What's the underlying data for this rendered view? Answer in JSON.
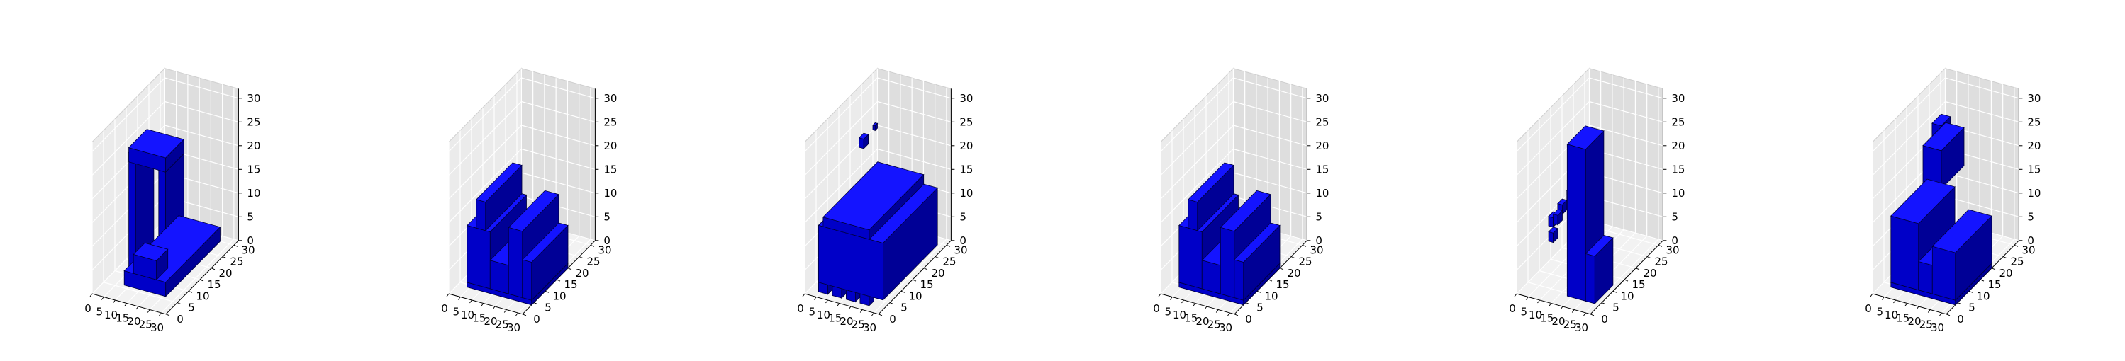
{
  "chart_data": [
    {
      "type": "voxel",
      "panel": 1,
      "x_ticks": [
        "0",
        "5",
        "10",
        "15",
        "20",
        "25",
        "30"
      ],
      "y_ticks": [
        "0",
        "5",
        "10",
        "15",
        "20",
        "25",
        "30"
      ],
      "z_ticks": [
        "0",
        "5",
        "10",
        "15",
        "20",
        "25",
        "30"
      ],
      "xlim": [
        0,
        32
      ],
      "ylim": [
        0,
        32
      ],
      "zlim": [
        0,
        32
      ],
      "grid": true,
      "boxes": [
        [
          8,
          6,
          0,
          18,
          24,
          3
        ],
        [
          8,
          8,
          3,
          3,
          8,
          24
        ],
        [
          21,
          8,
          3,
          3,
          8,
          22
        ],
        [
          8,
          8,
          25,
          16,
          8,
          3
        ],
        [
          12,
          6,
          3,
          10,
          5,
          4
        ]
      ]
    },
    {
      "type": "voxel",
      "panel": 2,
      "x_ticks": [
        "0",
        "5",
        "10",
        "15",
        "20",
        "25",
        "30"
      ],
      "y_ticks": [
        "0",
        "5",
        "10",
        "15",
        "20",
        "25",
        "30"
      ],
      "z_ticks": [
        "0",
        "5",
        "10",
        "15",
        "20",
        "25",
        "30"
      ],
      "xlim": [
        0,
        32
      ],
      "ylim": [
        0,
        32
      ],
      "zlim": [
        0,
        32
      ],
      "grid": true,
      "boxes": [
        [
          4,
          4,
          0,
          28,
          16,
          1
        ],
        [
          4,
          4,
          1,
          10,
          16,
          12
        ],
        [
          8,
          4,
          13,
          4,
          16,
          6
        ],
        [
          14,
          4,
          1,
          8,
          16,
          6
        ],
        [
          22,
          4,
          1,
          6,
          16,
          14
        ],
        [
          28,
          4,
          1,
          4,
          16,
          8
        ]
      ]
    },
    {
      "type": "voxel",
      "panel": 3,
      "x_ticks": [
        "0",
        "5",
        "10",
        "15",
        "20",
        "25",
        "30"
      ],
      "y_ticks": [
        "0",
        "5",
        "10",
        "15",
        "20",
        "25",
        "30"
      ],
      "z_ticks": [
        "0",
        "5",
        "10",
        "15",
        "20",
        "25",
        "30"
      ],
      "xlim": [
        0,
        32
      ],
      "ylim": [
        0,
        32
      ],
      "zlim": [
        0,
        32
      ],
      "grid": true,
      "boxes": [
        [
          4,
          2,
          2,
          28,
          24,
          12
        ],
        [
          6,
          2,
          14,
          20,
          24,
          2
        ],
        [
          4,
          2,
          0,
          4,
          2,
          2
        ],
        [
          10,
          2,
          0,
          4,
          2,
          2
        ],
        [
          16,
          2,
          0,
          4,
          2,
          2
        ],
        [
          22,
          2,
          0,
          4,
          2,
          2
        ],
        [
          -2,
          26,
          18,
          2,
          2,
          2
        ],
        [
          0,
          30,
          20,
          1,
          1,
          1
        ],
        [
          28,
          10,
          20,
          2,
          2,
          2
        ]
      ]
    },
    {
      "type": "voxel",
      "panel": 4,
      "x_ticks": [
        "0",
        "5",
        "10",
        "15",
        "20",
        "25",
        "30"
      ],
      "y_ticks": [
        "0",
        "5",
        "10",
        "15",
        "20",
        "25",
        "30"
      ],
      "z_ticks": [
        "0",
        "5",
        "10",
        "15",
        "20",
        "25",
        "30"
      ],
      "xlim": [
        0,
        32
      ],
      "ylim": [
        0,
        32
      ],
      "zlim": [
        0,
        32
      ],
      "grid": true,
      "boxes": [
        [
          4,
          4,
          0,
          28,
          16,
          1
        ],
        [
          4,
          4,
          1,
          10,
          16,
          12
        ],
        [
          8,
          4,
          13,
          4,
          16,
          6
        ],
        [
          14,
          4,
          1,
          8,
          16,
          6
        ],
        [
          22,
          4,
          1,
          6,
          16,
          14
        ],
        [
          28,
          4,
          1,
          4,
          16,
          8
        ]
      ]
    },
    {
      "type": "voxel",
      "panel": 5,
      "x_ticks": [
        "0",
        "5",
        "10",
        "15",
        "20",
        "25",
        "30"
      ],
      "y_ticks": [
        "0",
        "5",
        "10",
        "15",
        "20",
        "25",
        "30"
      ],
      "z_ticks": [
        "0",
        "5",
        "10",
        "15",
        "20",
        "25",
        "30"
      ],
      "xlim": [
        0,
        32
      ],
      "ylim": [
        0,
        32
      ],
      "zlim": [
        0,
        32
      ],
      "grid": true,
      "boxes": [
        [
          18,
          4,
          0,
          8,
          8,
          32
        ],
        [
          26,
          4,
          0,
          4,
          8,
          10
        ],
        [
          4,
          10,
          10,
          2,
          2,
          2
        ],
        [
          6,
          12,
          12,
          2,
          2,
          2
        ],
        [
          8,
          8,
          12,
          2,
          2,
          2
        ],
        [
          6,
          8,
          8,
          2,
          2,
          2
        ],
        [
          8,
          14,
          14,
          2,
          2,
          2
        ]
      ]
    },
    {
      "type": "voxel",
      "panel": 6,
      "x_ticks": [
        "0",
        "5",
        "10",
        "15",
        "20",
        "25",
        "30"
      ],
      "y_ticks": [
        "0",
        "5",
        "10",
        "15",
        "20",
        "25",
        "30"
      ],
      "z_ticks": [
        "0",
        "5",
        "10",
        "15",
        "20",
        "25",
        "30"
      ],
      "xlim": [
        0,
        32
      ],
      "ylim": [
        0,
        32
      ],
      "zlim": [
        0,
        32
      ],
      "grid": true,
      "boxes": [
        [
          4,
          4,
          0,
          28,
          16,
          1
        ],
        [
          4,
          4,
          1,
          12,
          16,
          14
        ],
        [
          16,
          4,
          1,
          6,
          16,
          6
        ],
        [
          22,
          4,
          1,
          10,
          16,
          10
        ],
        [
          12,
          10,
          20,
          8,
          10,
          8
        ],
        [
          14,
          12,
          28,
          4,
          4,
          4
        ]
      ]
    }
  ],
  "colors": {
    "voxel_top": "#1414ff",
    "voxel_front": "#0000c8",
    "voxel_side": "#000096",
    "edge": "#00003a",
    "pane_left": "#ebebeb",
    "pane_right": "#dedede",
    "pane_floor": "#f2f2f2",
    "grid": "#ffffff",
    "axis": "#000000"
  }
}
